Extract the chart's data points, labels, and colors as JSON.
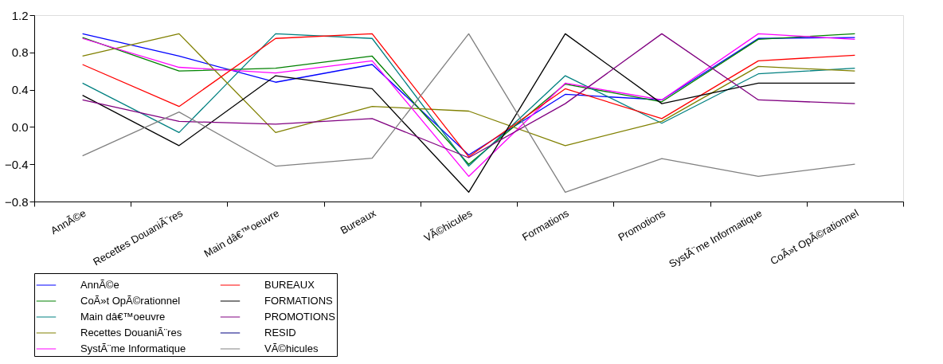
{
  "chart_data": {
    "type": "line",
    "categories": [
      "AnnÃ©e",
      "Recettes DouaniÃ¨res",
      "Main dâ€™oeuvre",
      "Bureaux",
      "VÃ©hicules",
      "Formations",
      "Promotions",
      "SystÃ¨me Informatique",
      "CoÃ»t OpÃ©rationnel"
    ],
    "series": [
      {
        "name": "AnnÃ©e",
        "color": "#0000ff",
        "values": [
          1.0,
          0.76,
          0.48,
          0.67,
          -0.3,
          0.35,
          0.29,
          0.95,
          0.96
        ]
      },
      {
        "name": "CoÃ»t OpÃ©rationnel",
        "color": "#008000",
        "values": [
          0.96,
          0.6,
          0.63,
          0.76,
          -0.4,
          0.46,
          0.27,
          0.94,
          1.0
        ]
      },
      {
        "name": "Main dâ€™oeuvre",
        "color": "#008080",
        "values": [
          0.47,
          -0.06,
          1.0,
          0.95,
          -0.42,
          0.55,
          0.04,
          0.57,
          0.63
        ]
      },
      {
        "name": "Recettes DouaniÃ¨res",
        "color": "#808000",
        "values": [
          0.76,
          1.0,
          -0.06,
          0.22,
          0.17,
          -0.2,
          0.06,
          0.65,
          0.6
        ]
      },
      {
        "name": "SystÃ¨me Informatique",
        "color": "#ff00ff",
        "values": [
          0.95,
          0.64,
          0.58,
          0.71,
          -0.53,
          0.47,
          0.29,
          1.0,
          0.94
        ]
      },
      {
        "name": "BUREAUX",
        "color": "#ff0000",
        "values": [
          0.67,
          0.22,
          0.95,
          1.0,
          -0.32,
          0.41,
          0.09,
          0.71,
          0.77
        ]
      },
      {
        "name": "FORMATIONS",
        "color": "#000000",
        "values": [
          0.34,
          -0.2,
          0.55,
          0.41,
          -0.7,
          1.0,
          0.25,
          0.47,
          0.47
        ]
      },
      {
        "name": "PROMOTIONS",
        "color": "#800080",
        "values": [
          0.29,
          0.06,
          0.03,
          0.09,
          -0.33,
          0.25,
          1.0,
          0.29,
          0.25
        ]
      },
      {
        "name": "RESID",
        "color": "#000080",
        "values": [
          null,
          null,
          null,
          null,
          null,
          null,
          null,
          null,
          null
        ]
      },
      {
        "name": "VÃ©hicules",
        "color": "#808080",
        "values": [
          -0.31,
          0.16,
          -0.42,
          -0.335,
          1.0,
          -0.7,
          -0.34,
          -0.53,
          -0.4
        ]
      }
    ],
    "ylim": [
      -0.8,
      1.2
    ],
    "yticks": [
      -0.8,
      -0.4,
      {
        "value": 0,
        "label": "0.0"
      },
      0.4,
      0.8,
      1.2
    ],
    "grid": false,
    "legend": "bottom",
    "marker": "none",
    "line_style": "solid"
  }
}
